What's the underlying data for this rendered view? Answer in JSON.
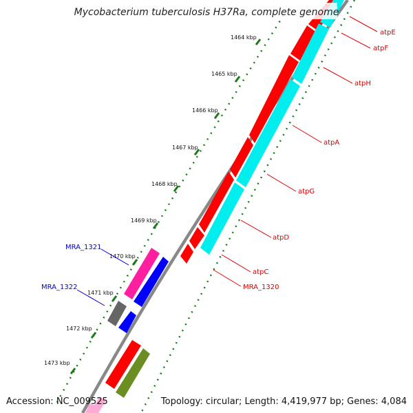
{
  "map": {
    "title": "Mycobacterium tuberculosis H37Ra, complete genome",
    "accession": "Accession: NC_009525",
    "summary": "Topology: circular; Length: 4,419,977 bp; Genes: 4,084",
    "ticks": [
      {
        "label": "1464 kbp"
      },
      {
        "label": "1465 kbp"
      },
      {
        "label": "1466 kbp"
      },
      {
        "label": "1467 kbp"
      },
      {
        "label": "1468 kbp"
      },
      {
        "label": "1469 kbp"
      },
      {
        "label": "1470 kbp"
      },
      {
        "label": "1471 kbp"
      },
      {
        "label": "1472 kbp"
      },
      {
        "label": "1473 kbp"
      }
    ],
    "gene_labels": [
      {
        "name": "atpE",
        "color": "#dd0000"
      },
      {
        "name": "atpF",
        "color": "#dd0000"
      },
      {
        "name": "atpH",
        "color": "#dd0000"
      },
      {
        "name": "atpA",
        "color": "#dd0000"
      },
      {
        "name": "atpG",
        "color": "#dd0000"
      },
      {
        "name": "atpD",
        "color": "#dd0000"
      },
      {
        "name": "atpC",
        "color": "#dd0000"
      },
      {
        "name": "MRA_1320",
        "color": "#dd0000"
      },
      {
        "name": "MRA_1321",
        "color": "#0000cc"
      },
      {
        "name": "MRA_1322",
        "color": "#0000cc"
      }
    ],
    "colors": {
      "backbone": "#888888",
      "tick": "#1a7a1a",
      "gene_red": "#ff0000",
      "gene_cyan": "#00eeee",
      "gene_magenta": "#ff1ea0",
      "gene_blue": "#0000ff",
      "gene_gray": "#666666",
      "gene_olive": "#6b8e23",
      "gene_pink": "#ffaad4"
    }
  }
}
